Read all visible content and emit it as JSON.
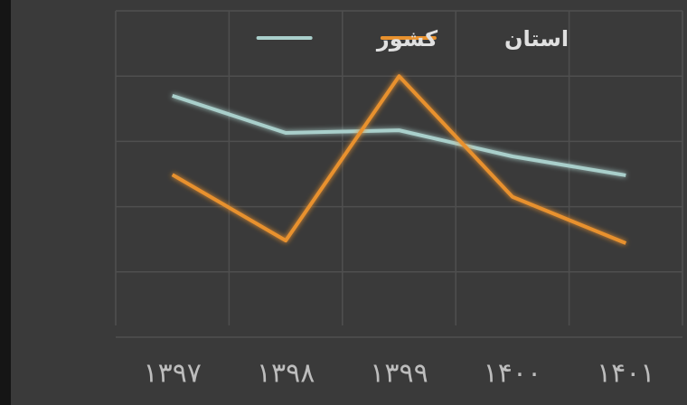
{
  "chart_data": {
    "type": "line",
    "categories": [
      "۱۳۹۷",
      "۱۳۹۸",
      "۱۳۹۹",
      "۱۴۰۰",
      "۱۴۰۱"
    ],
    "series": [
      {
        "name": "کشور",
        "color": "#a9cfcb",
        "values": [
          3.7,
          3.13,
          3.17,
          2.77,
          2.48
        ]
      },
      {
        "name": "استان",
        "color": "#e8912d",
        "values": [
          2.49,
          1.48,
          4.0,
          2.15,
          1.44
        ]
      }
    ],
    "ylim": [
      0,
      5
    ],
    "yticks": [
      0,
      1,
      2,
      3,
      4,
      5
    ],
    "grid": true,
    "legend": "top"
  }
}
